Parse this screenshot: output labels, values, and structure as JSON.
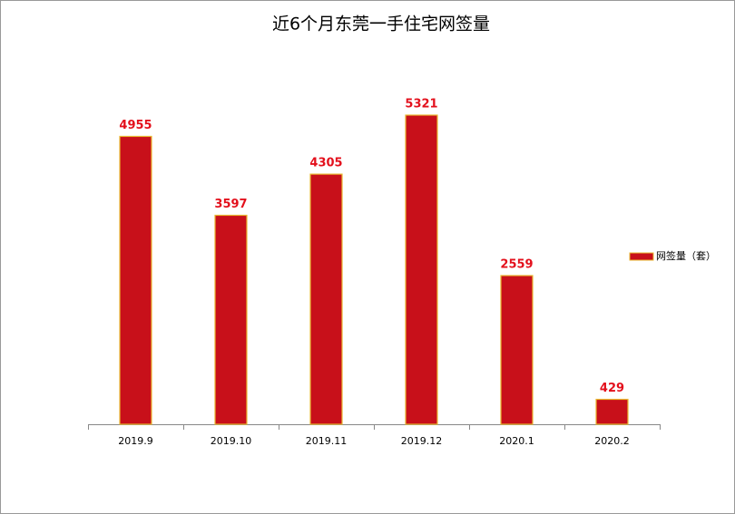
{
  "chart_data": {
    "type": "bar",
    "title": "近6个月东莞一手住宅网签量",
    "categories": [
      "2019.9",
      "2019.10",
      "2019.11",
      "2019.12",
      "2020.1",
      "2020.2"
    ],
    "series": [
      {
        "name": "网签量（套）",
        "color": "#c8101a",
        "values": [
          4955,
          3597,
          4305,
          5321,
          2559,
          429
        ]
      }
    ],
    "legend": "right"
  }
}
